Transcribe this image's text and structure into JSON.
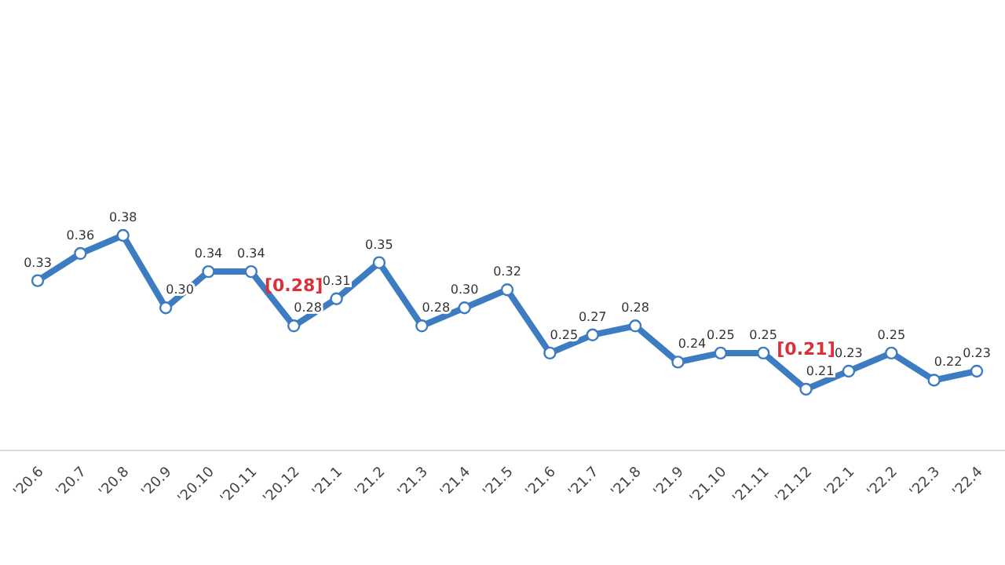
{
  "chart_data": {
    "type": "line",
    "categories": [
      "'20.6",
      "'20.7",
      "'20.8",
      "'20.9",
      "'20.10",
      "'20.11",
      "'20.12",
      "'21.1",
      "'21.2",
      "'21.3",
      "'21.4",
      "'21.5",
      "'21.6",
      "'21.7",
      "'21.8",
      "'21.9",
      "'21.10",
      "'21.11",
      "'21.12",
      "'22.1",
      "'22.2",
      "'22.3",
      "'22.4"
    ],
    "series": [
      {
        "color": "#3d7cc0",
        "values": [
          0.33,
          0.36,
          0.38,
          0.3,
          0.34,
          0.34,
          0.28,
          0.31,
          0.35,
          0.28,
          0.3,
          0.32,
          0.25,
          0.27,
          0.28,
          0.24,
          0.25,
          0.25,
          0.21,
          0.23,
          0.25,
          0.22,
          0.23
        ],
        "value_labels": [
          "0.33",
          "0.36",
          "0.38",
          "0.30",
          "0.34",
          "0.34",
          "0.28",
          "0.31",
          "0.35",
          "0.28",
          "0.30",
          "0.32",
          "0.25",
          "0.27",
          "0.28",
          "0.24",
          "0.25",
          "0.25",
          "0.21",
          "0.23",
          "0.25",
          "0.22",
          "0.23"
        ]
      }
    ],
    "marker": "circle",
    "line_style": "solid",
    "annotations": [
      {
        "text": "[0.28]",
        "x": "'20.12",
        "y": 0.28
      },
      {
        "text": "[0.21]",
        "x": "'21.12",
        "y": 0.21
      }
    ]
  }
}
